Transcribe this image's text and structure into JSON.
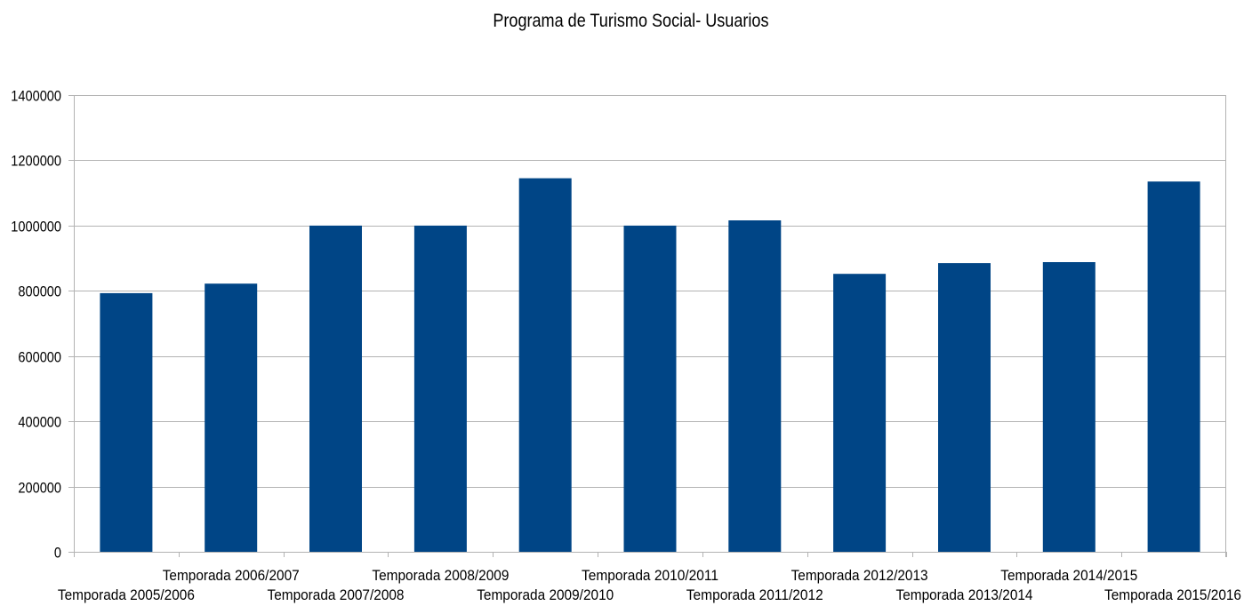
{
  "chart_data": {
    "type": "bar",
    "title": "Programa de Turismo Social- Usuarios",
    "xlabel": "",
    "ylabel": "",
    "ylim": [
      0,
      1400000
    ],
    "yticks": [
      0,
      200000,
      400000,
      600000,
      800000,
      1000000,
      1200000,
      1400000
    ],
    "ytick_labels": [
      "0",
      "200000",
      "400000",
      "600000",
      "800000",
      "1000000",
      "1200000",
      "1400000"
    ],
    "grid": true,
    "legend": "none",
    "bar_color": "#004586",
    "categories": [
      "Temporada 2005/2006",
      "Temporada 2006/2007",
      "Temporada 2007/2008",
      "Temporada 2008/2009",
      "Temporada 2009/2010",
      "Temporada 2010/2011",
      "Temporada 2011/2012",
      "Temporada 2012/2013",
      "Temporada 2013/2014",
      "Temporada 2014/2015",
      "Temporada 2015/2016"
    ],
    "values": [
      793000,
      822000,
      1000000,
      1000000,
      1145000,
      1000000,
      1016000,
      852000,
      885000,
      888000,
      1135000
    ]
  }
}
